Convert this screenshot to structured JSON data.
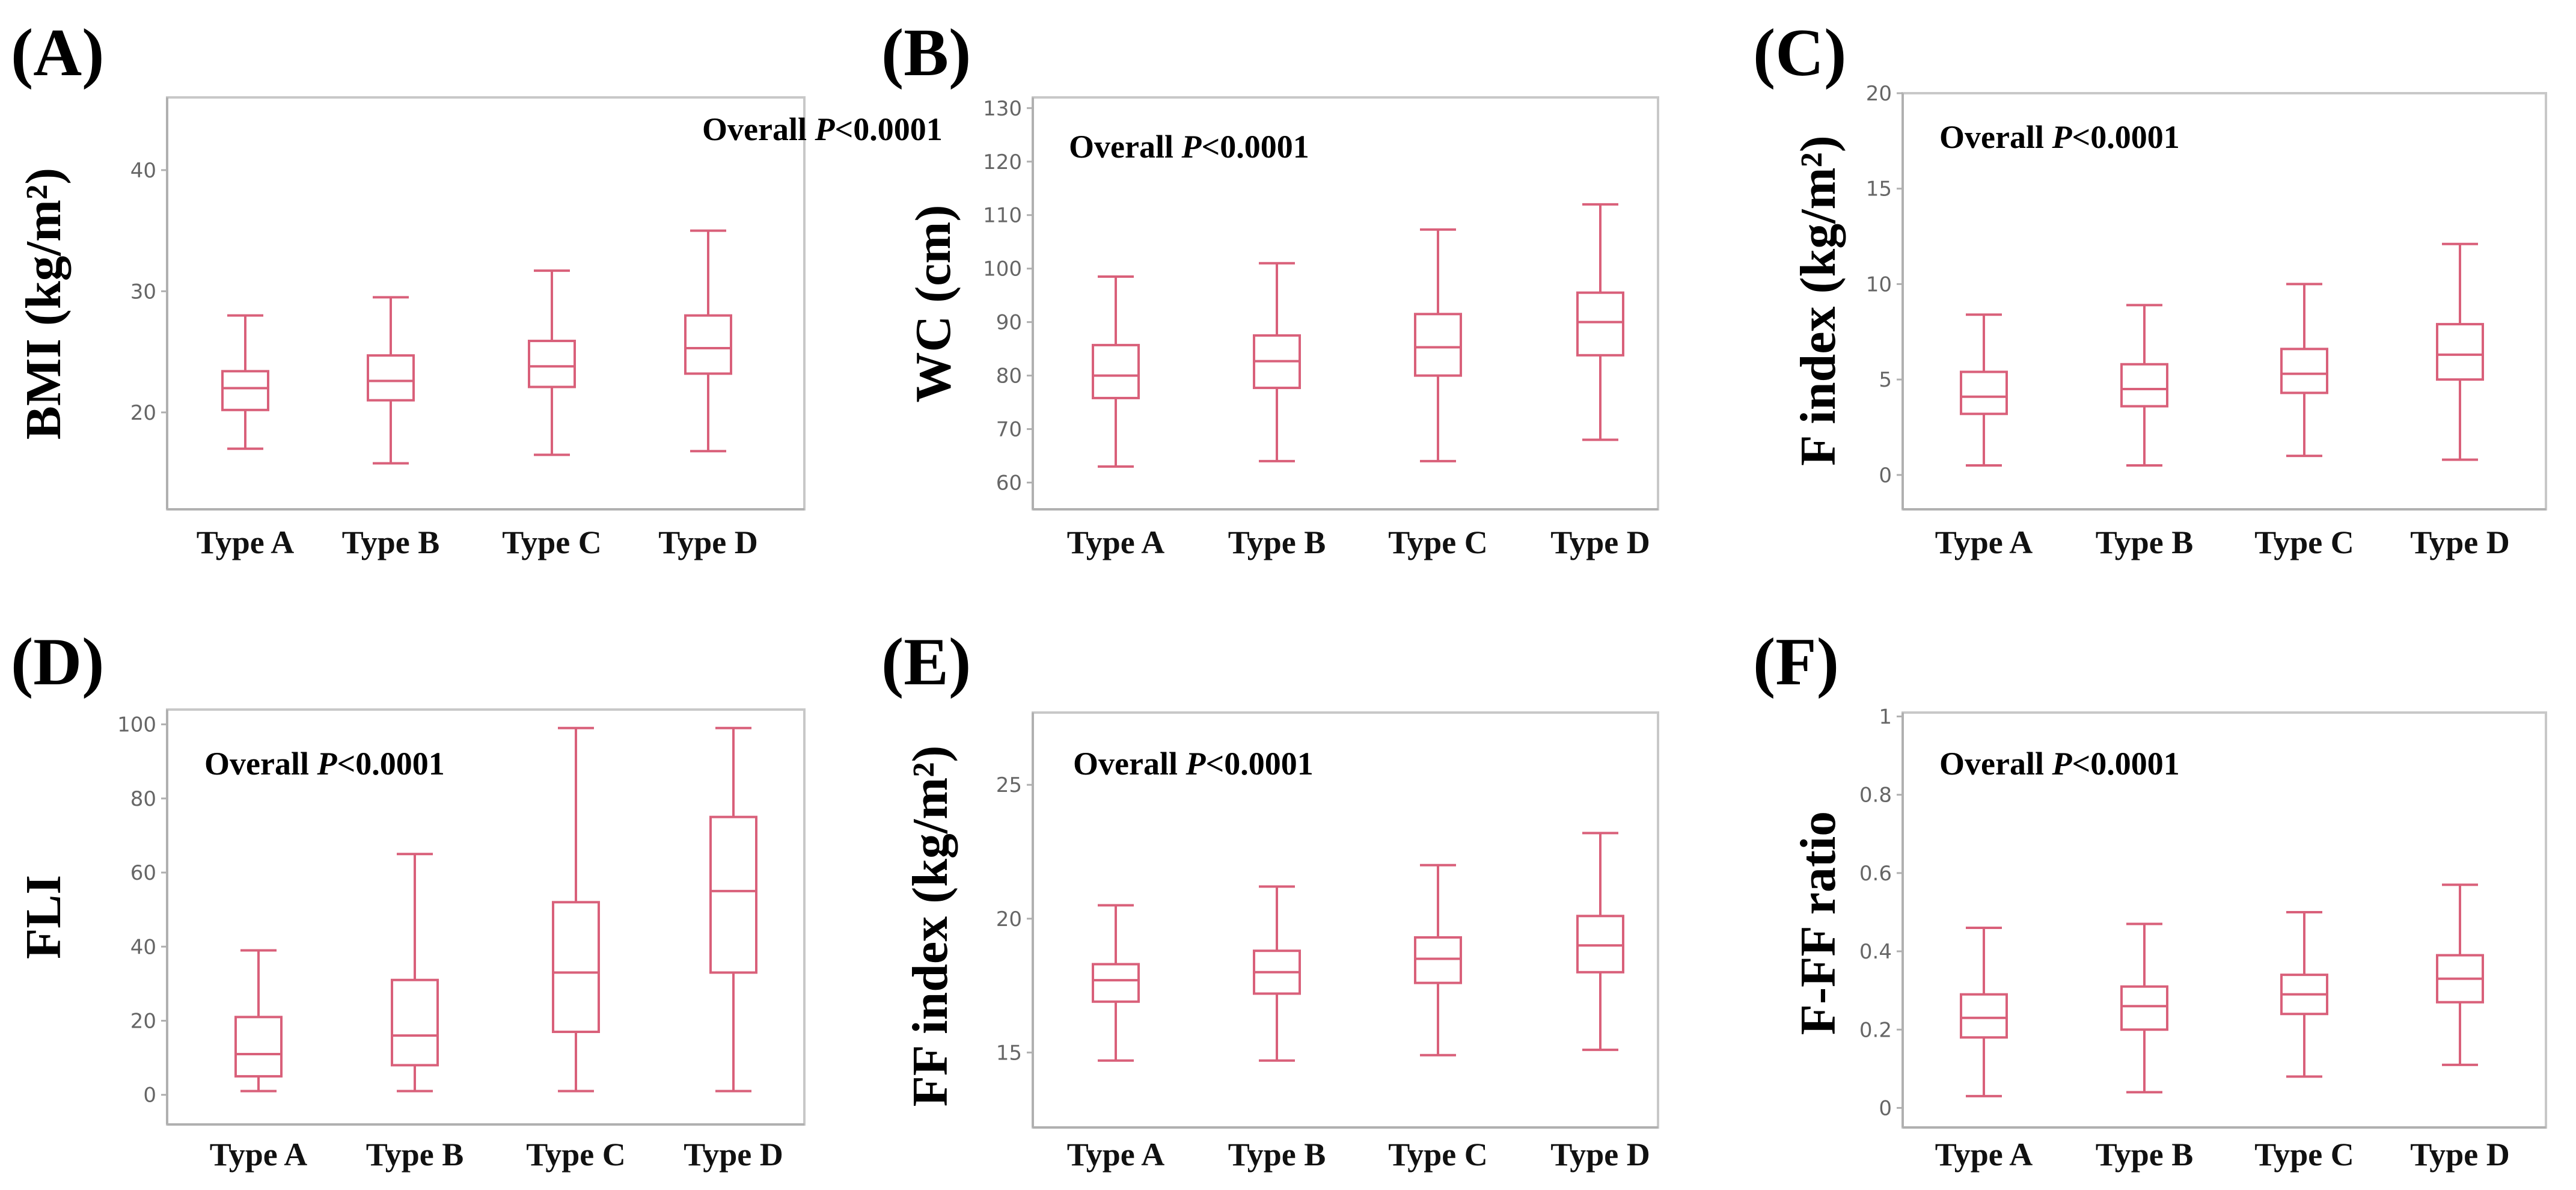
{
  "colors": {
    "box": "#d9607a",
    "frame": "#c8c8c8",
    "axis": "#b0b0b0"
  },
  "chart_data": [
    {
      "panel": "(A)",
      "type": "boxplot",
      "ylabel": "BMI (kg/m²)",
      "annotation_prefix": "Overall ",
      "annotation_p": "P",
      "annotation_value": "<0.0001",
      "ylim": [
        12,
        46
      ],
      "yticks": [
        20,
        30,
        40
      ],
      "categories": [
        "Type A",
        "Type B",
        "Type C",
        "Type D"
      ],
      "boxes": [
        {
          "min": 17.0,
          "q1": 20.2,
          "median": 22.0,
          "q3": 23.4,
          "max": 28.0
        },
        {
          "min": 15.8,
          "q1": 21.0,
          "median": 22.6,
          "q3": 24.7,
          "max": 29.5
        },
        {
          "min": 16.5,
          "q1": 22.1,
          "median": 23.8,
          "q3": 25.9,
          "max": 31.7
        },
        {
          "min": 16.8,
          "q1": 23.2,
          "median": 25.3,
          "q3": 28.0,
          "max": 35.0
        }
      ]
    },
    {
      "panel": "(B)",
      "type": "boxplot",
      "ylabel": "WC (cm)",
      "annotation_prefix": "Overall ",
      "annotation_p": "P",
      "annotation_value": "<0.0001",
      "ylim": [
        55,
        132
      ],
      "yticks": [
        60,
        70,
        80,
        90,
        100,
        110,
        120,
        130
      ],
      "categories": [
        "Type A",
        "Type B",
        "Type C",
        "Type D"
      ],
      "boxes": [
        {
          "min": 63.0,
          "q1": 75.8,
          "median": 80.0,
          "q3": 85.7,
          "max": 98.5
        },
        {
          "min": 64.0,
          "q1": 77.7,
          "median": 82.7,
          "q3": 87.5,
          "max": 101.0
        },
        {
          "min": 64.0,
          "q1": 80.0,
          "median": 85.3,
          "q3": 91.5,
          "max": 107.3
        },
        {
          "min": 68.0,
          "q1": 83.8,
          "median": 90.0,
          "q3": 95.5,
          "max": 112.0
        }
      ]
    },
    {
      "panel": "(C)",
      "type": "boxplot",
      "ylabel": "F index (kg/m²)",
      "annotation_prefix": "Overall ",
      "annotation_p": "P",
      "annotation_value": "<0.0001",
      "ylim": [
        -1.8,
        20
      ],
      "yticks": [
        0,
        5,
        10,
        15,
        20
      ],
      "categories": [
        "Type A",
        "Type B",
        "Type C",
        "Type D"
      ],
      "boxes": [
        {
          "min": 0.5,
          "q1": 3.2,
          "median": 4.1,
          "q3": 5.4,
          "max": 8.4
        },
        {
          "min": 0.5,
          "q1": 3.6,
          "median": 4.5,
          "q3": 5.8,
          "max": 8.9
        },
        {
          "min": 1.0,
          "q1": 4.3,
          "median": 5.3,
          "q3": 6.6,
          "max": 10.0
        },
        {
          "min": 0.8,
          "q1": 5.0,
          "median": 6.3,
          "q3": 7.9,
          "max": 12.1
        }
      ]
    },
    {
      "panel": "(D)",
      "type": "boxplot",
      "ylabel": "FLI",
      "annotation_prefix": "Overall ",
      "annotation_p": "P",
      "annotation_value": "<0.0001",
      "ylim": [
        -8,
        104
      ],
      "yticks": [
        0,
        20,
        40,
        60,
        80,
        100
      ],
      "categories": [
        "Type A",
        "Type B",
        "Type C",
        "Type D"
      ],
      "boxes": [
        {
          "min": 1.0,
          "q1": 5.0,
          "median": 11.0,
          "q3": 21.0,
          "max": 39.0
        },
        {
          "min": 1.0,
          "q1": 8.0,
          "median": 16.0,
          "q3": 31.0,
          "max": 65.0
        },
        {
          "min": 1.0,
          "q1": 17.0,
          "median": 33.0,
          "q3": 52.0,
          "max": 99.0
        },
        {
          "min": 1.0,
          "q1": 33.0,
          "median": 55.0,
          "q3": 75.0,
          "max": 99.0
        }
      ]
    },
    {
      "panel": "(E)",
      "type": "boxplot",
      "ylabel": "FF index (kg/m²)",
      "annotation_prefix": "Overall ",
      "annotation_p": "P",
      "annotation_value": "<0.0001",
      "ylim": [
        12.2,
        27.7
      ],
      "yticks": [
        15,
        20,
        25
      ],
      "categories": [
        "Type A",
        "Type B",
        "Type C",
        "Type D"
      ],
      "boxes": [
        {
          "min": 14.7,
          "q1": 16.9,
          "median": 17.7,
          "q3": 18.3,
          "max": 20.5
        },
        {
          "min": 14.7,
          "q1": 17.2,
          "median": 18.0,
          "q3": 18.8,
          "max": 21.2
        },
        {
          "min": 14.9,
          "q1": 17.6,
          "median": 18.5,
          "q3": 19.3,
          "max": 22.0
        },
        {
          "min": 15.1,
          "q1": 18.0,
          "median": 19.0,
          "q3": 20.1,
          "max": 23.2
        }
      ]
    },
    {
      "panel": "(F)",
      "type": "boxplot",
      "ylabel": "F-FF ratio",
      "annotation_prefix": "Overall ",
      "annotation_p": "P",
      "annotation_value": "<0.0001",
      "ylim": [
        -0.05,
        1.01
      ],
      "yticks": [
        0,
        0.2,
        0.4,
        0.6,
        0.8,
        1
      ],
      "categories": [
        "Type A",
        "Type B",
        "Type C",
        "Type D"
      ],
      "boxes": [
        {
          "min": 0.03,
          "q1": 0.18,
          "median": 0.23,
          "q3": 0.29,
          "max": 0.46
        },
        {
          "min": 0.04,
          "q1": 0.2,
          "median": 0.26,
          "q3": 0.31,
          "max": 0.47
        },
        {
          "min": 0.08,
          "q1": 0.24,
          "median": 0.29,
          "q3": 0.34,
          "max": 0.5
        },
        {
          "min": 0.11,
          "q1": 0.27,
          "median": 0.33,
          "q3": 0.39,
          "max": 0.57
        }
      ]
    }
  ]
}
